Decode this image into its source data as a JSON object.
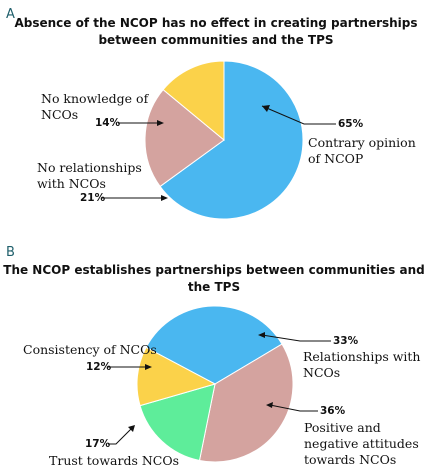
{
  "chart_data": [
    {
      "type": "pie",
      "panel": "A",
      "title": "Absence of the NCOP has no effect in creating partnerships between communities and the TPS",
      "title_lines": [
        "Absence of the NCOP has no effect in creating partnerships",
        "between communities and the TPS"
      ],
      "slices": [
        {
          "label": "Contrary opinion of NCOP",
          "label_lines": [
            "Contrary opinion",
            "of NCOP"
          ],
          "value": 65,
          "value_label": "65%",
          "color": "#4ab7f0"
        },
        {
          "label": "No relationships with NCOs",
          "label_lines": [
            "No relationships",
            "with NCOs"
          ],
          "value": 21,
          "value_label": "21%",
          "color": "#d4a39f"
        },
        {
          "label": "No knowledge of NCOs",
          "label_lines": [
            "No knowledge of",
            "NCOs"
          ],
          "value": 14,
          "value_label": "14%",
          "color": "#fbd24a"
        }
      ]
    },
    {
      "type": "pie",
      "panel": "B",
      "title": "The NCOP establishes partnerships between communities and the TPS",
      "title_lines": [
        "The NCOP establishes partnerships between communities and",
        "the TPS"
      ],
      "slices": [
        {
          "label": "Relationships with NCOs",
          "label_lines": [
            "Relationships with",
            "NCOs"
          ],
          "value": 33,
          "value_label": "33%",
          "color": "#4ab7f0"
        },
        {
          "label": "Positive and negative attitudes towards NCOs",
          "label_lines": [
            "Positive and",
            "negative attitudes",
            "towards NCOs"
          ],
          "value": 36,
          "value_label": "36%",
          "color": "#d4a39f"
        },
        {
          "label": "Trust towards NCOs",
          "label_lines": [
            "Trust towards NCOs"
          ],
          "value": 17,
          "value_label": "17%",
          "color": "#5eed9a"
        },
        {
          "label": "Consistency of NCOs",
          "label_lines": [
            "Consistency of NCOs"
          ],
          "value": 12,
          "value_label": "12%",
          "color": "#fbd24a"
        }
      ]
    }
  ]
}
